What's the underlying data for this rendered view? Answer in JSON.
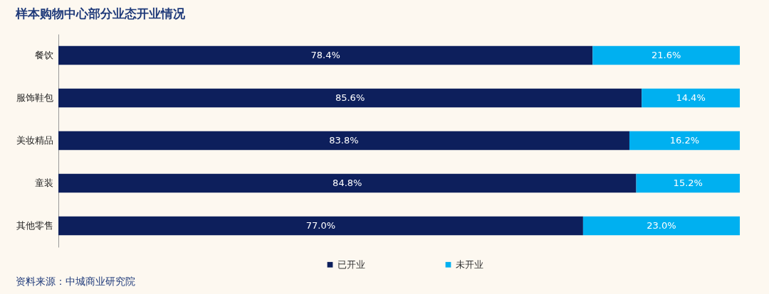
{
  "chart_data": {
    "type": "bar",
    "title": "样本购物中心部分业态开业情况",
    "orientation": "horizontal",
    "stacked": true,
    "data_labels": true,
    "legend": "bottom",
    "categories": [
      "餐饮",
      "服饰鞋包",
      "美妆精品",
      "童装",
      "其他零售"
    ],
    "series": [
      {
        "name": "已开业",
        "color": "#0d1f5c",
        "values": [
          78.4,
          85.6,
          83.8,
          84.8,
          77.0
        ],
        "value_labels": [
          "78.4%",
          "85.6%",
          "83.8%",
          "84.8%",
          "77.0%"
        ]
      },
      {
        "name": "未开业",
        "color": "#00b0f0",
        "values": [
          21.6,
          14.4,
          16.2,
          15.2,
          23.0
        ],
        "value_labels": [
          "21.6%",
          "14.4%",
          "16.2%",
          "15.2%",
          "23.0%"
        ]
      }
    ],
    "annotations": [
      "资料来源：中城商业研究院"
    ]
  }
}
